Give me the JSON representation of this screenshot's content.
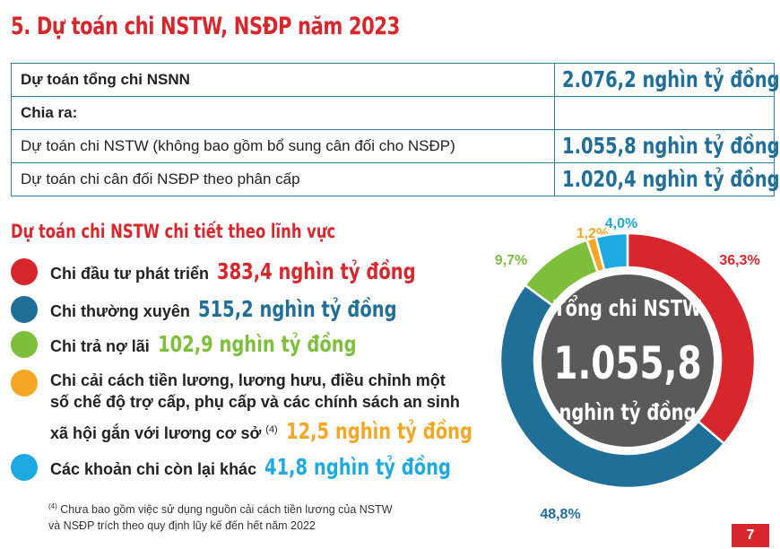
{
  "title": "5. Dự toán chi NSTW, NSĐP năm 2023",
  "summary": {
    "row1": {
      "label": "Dự toán tổng chi NSNN",
      "value": "2.076,2 nghìn tỷ đồng"
    },
    "row2": {
      "label": "Chia ra:",
      "value": ""
    },
    "row3": {
      "label": "Dự toán chi NSTW (không bao gồm bổ sung cân đối cho NSĐP)",
      "value": "1.055,8 nghìn tỷ đồng"
    },
    "row4": {
      "label": "Dự toán chi cân đối NSĐP theo phân cấp",
      "value": "1.020,4 nghìn tỷ đồng"
    }
  },
  "detail_title": "Dự toán chi NSTW chi tiết theo lĩnh vực",
  "legend": [
    {
      "label": "Chi đầu tư phát triển",
      "value": "383,4 nghìn tỷ đồng",
      "color": "#d7262c"
    },
    {
      "label": "Chi thường xuyên",
      "value": "515,2 nghìn tỷ đồng",
      "color": "#1f6f98"
    },
    {
      "label": "Chi trả nợ lãi",
      "value": "102,9 nghìn tỷ đồng",
      "color": "#7dbe3c"
    },
    {
      "label_line1": "Chi cải cách tiền lương, lương hưu, điều chỉnh một",
      "label_line2": "số chế độ trợ cấp, phụ cấp và các chính sách an sinh",
      "label_line3": "xã hội gắn với lương cơ sở",
      "sup": "(4)",
      "value": "12,5 nghìn tỷ đồng",
      "color": "#f5a623"
    },
    {
      "label": "Các khoản chi còn lại khác",
      "value": "41,8 nghìn tỷ đồng",
      "color": "#1fa9e1"
    }
  ],
  "footnote": {
    "sup": "(4)",
    "line1": "Chưa bao gồm việc sử dụng nguồn cải cách tiền lương của NSTW",
    "line2": "và NSĐP trích theo quy định lũy kế đến hết năm 2022"
  },
  "page_number": "7",
  "chart_data": {
    "type": "pie",
    "donut": true,
    "center_text": [
      "Tổng chi NSTW",
      "1.055,8",
      "nghìn tỷ đồng"
    ],
    "categories": [
      "Chi đầu tư phát triển",
      "Chi thường xuyên",
      "Chi trả nợ lãi",
      "Chi cải cách tiền lương, lương hưu, điều chỉnh một số chế độ trợ cấp, phụ cấp và các chính sách an sinh xã hội gắn với lương cơ sở",
      "Các khoản chi còn lại khác"
    ],
    "values": [
      36.3,
      48.8,
      9.7,
      1.2,
      4.0
    ],
    "labels": [
      "36,3%",
      "48,8%",
      "9,7%",
      "1,2%",
      "4,0%"
    ],
    "colors": [
      "#d7262c",
      "#1f6f98",
      "#7dbe3c",
      "#f5a623",
      "#1fa9e1"
    ],
    "center_color": "#5a5a5a"
  }
}
